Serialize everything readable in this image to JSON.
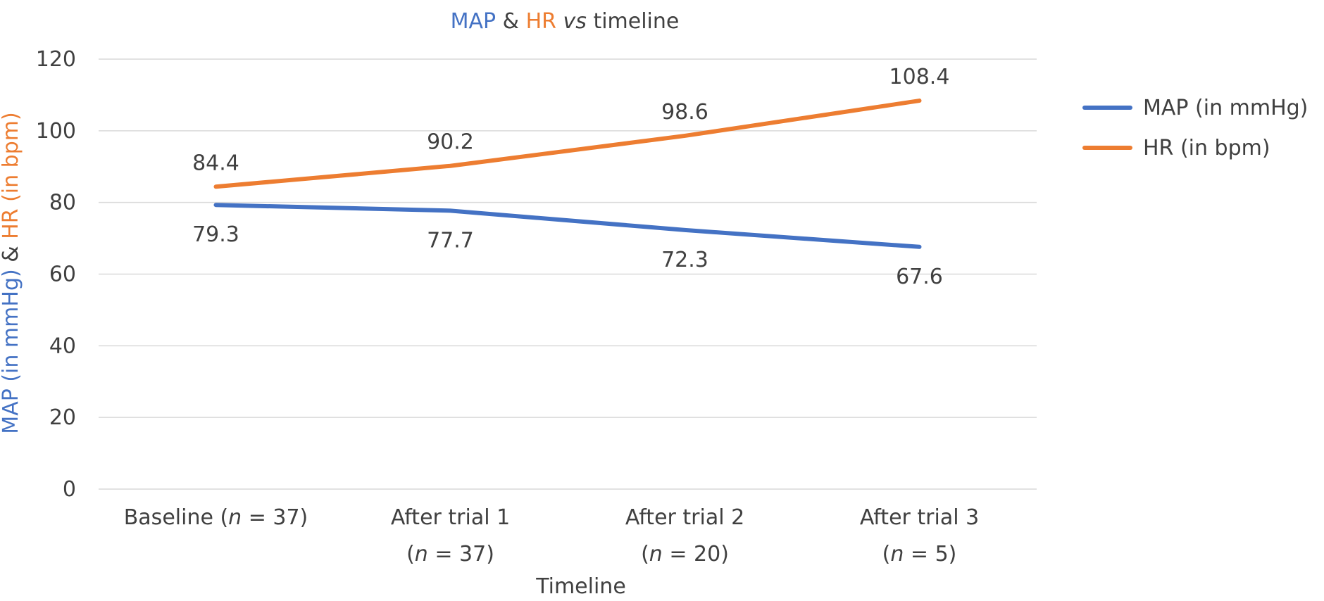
{
  "chart_data": {
    "type": "line",
    "title": {
      "parts": [
        {
          "text": "MAP",
          "italic": false,
          "color": "#4472C4"
        },
        {
          "text": " & ",
          "italic": false,
          "color": "#404040"
        },
        {
          "text": "HR",
          "italic": false,
          "color": "#ED7D31"
        },
        {
          "text": " vs",
          "italic": true,
          "color": "#404040"
        },
        {
          "text": " timeline",
          "italic": false,
          "color": "#404040"
        }
      ]
    },
    "xlabel": "Timeline",
    "ylabel": {
      "parts": [
        {
          "text": "MAP (in mmHg)",
          "color": "#4472C4"
        },
        {
          "text": " & ",
          "color": "#404040"
        },
        {
          "text": "HR (in bpm)",
          "color": "#ED7D31"
        }
      ]
    },
    "categories": [
      {
        "lines": [
          [
            {
              "text": "Baseline ("
            },
            {
              "text": "n",
              "italic": true
            },
            {
              "text": " = 37)"
            }
          ]
        ]
      },
      {
        "lines": [
          [
            {
              "text": "After trial 1"
            }
          ],
          [
            {
              "text": "("
            },
            {
              "text": "n",
              "italic": true
            },
            {
              "text": " = 37)"
            }
          ]
        ]
      },
      {
        "lines": [
          [
            {
              "text": "After trial 2"
            }
          ],
          [
            {
              "text": "("
            },
            {
              "text": "n",
              "italic": true
            },
            {
              "text": " = 20)"
            }
          ]
        ]
      },
      {
        "lines": [
          [
            {
              "text": "After trial 3"
            }
          ],
          [
            {
              "text": "("
            },
            {
              "text": "n",
              "italic": true
            },
            {
              "text": " = 5)"
            }
          ]
        ]
      }
    ],
    "series": [
      {
        "name": "MAP (in mmHg)",
        "color": "#4472C4",
        "values": [
          79.3,
          77.7,
          72.3,
          67.6
        ],
        "label_position": "below"
      },
      {
        "name": "HR (in bpm)",
        "color": "#ED7D31",
        "values": [
          84.4,
          90.2,
          98.6,
          108.4
        ],
        "label_position": "above"
      }
    ],
    "ylim": [
      0,
      120
    ],
    "yticks": [
      0,
      20,
      40,
      60,
      80,
      100,
      120
    ],
    "grid": true,
    "legend": "right"
  }
}
